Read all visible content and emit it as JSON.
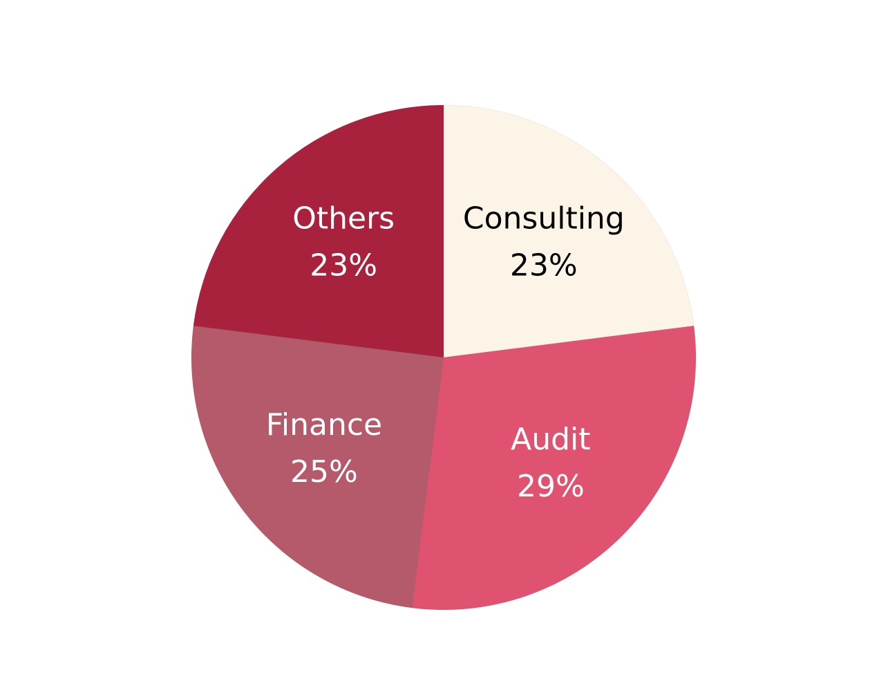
{
  "chart_data": {
    "type": "pie",
    "categories": [
      "Consulting",
      "Audit",
      "Finance",
      "Others"
    ],
    "values": [
      23,
      29,
      25,
      23
    ],
    "value_labels": [
      "23%",
      "29%",
      "25%",
      "23%"
    ],
    "colors": [
      "#fdf4e8",
      "#e05370",
      "#b55a6a",
      "#a8223e"
    ],
    "label_colors": [
      "#000000",
      "#ffffff",
      "#ffffff",
      "#ffffff"
    ]
  }
}
